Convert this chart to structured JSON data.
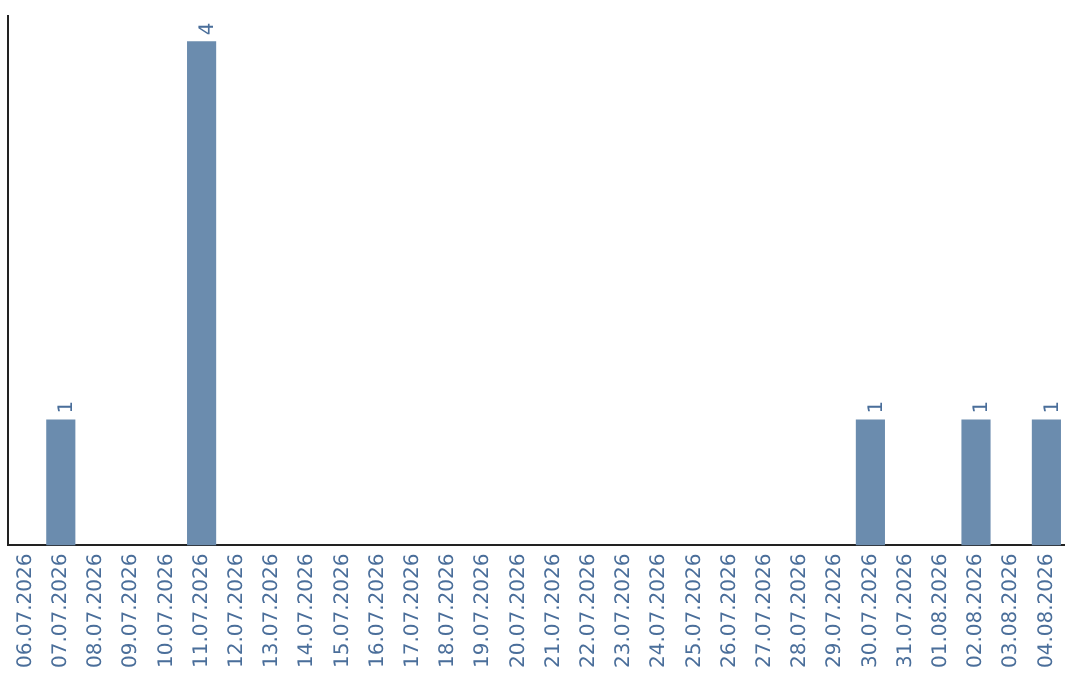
{
  "chart_data": {
    "type": "bar",
    "categories": [
      "06.07.2026",
      "07.07.2026",
      "08.07.2026",
      "09.07.2026",
      "10.07.2026",
      "11.07.2026",
      "12.07.2026",
      "13.07.2026",
      "14.07.2026",
      "15.07.2026",
      "16.07.2026",
      "17.07.2026",
      "18.07.2026",
      "19.07.2026",
      "20.07.2026",
      "21.07.2026",
      "22.07.2026",
      "23.07.2026",
      "24.07.2026",
      "25.07.2026",
      "26.07.2026",
      "27.07.2026",
      "28.07.2026",
      "29.07.2026",
      "30.07.2026",
      "31.07.2026",
      "01.08.2026",
      "02.08.2026",
      "03.08.2026",
      "04.08.2026"
    ],
    "values": [
      0,
      1,
      0,
      0,
      0,
      4,
      0,
      0,
      0,
      0,
      0,
      0,
      0,
      0,
      0,
      0,
      0,
      0,
      0,
      0,
      0,
      0,
      0,
      0,
      1,
      0,
      0,
      1,
      0,
      1
    ],
    "value_labels": [
      null,
      "1",
      null,
      null,
      null,
      "4",
      null,
      null,
      null,
      null,
      null,
      null,
      null,
      null,
      null,
      null,
      null,
      null,
      null,
      null,
      null,
      null,
      null,
      null,
      "1",
      null,
      null,
      "1",
      null,
      "1"
    ],
    "color": "#6b8cae",
    "ylim": [
      0,
      4.2
    ],
    "grid": false,
    "legend": false,
    "tick_labels": "x"
  }
}
